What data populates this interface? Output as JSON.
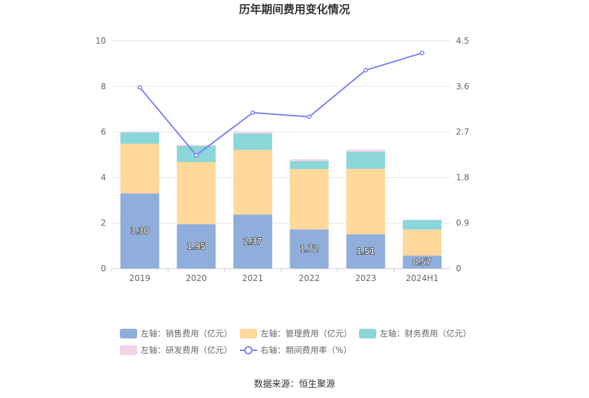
{
  "chart_data": {
    "type": "bar",
    "title": "历年期间费用变化情况",
    "categories": [
      "2019",
      "2020",
      "2021",
      "2022",
      "2023",
      "2024H1"
    ],
    "series": [
      {
        "name": "左轴：销售费用（亿元）",
        "axis": "left",
        "color": "#8faedc",
        "values": [
          3.3,
          1.95,
          2.37,
          1.72,
          1.51,
          0.57
        ],
        "labels": [
          "3.30",
          "1.95",
          "2.37",
          "1.72",
          "1.51",
          "0.57"
        ]
      },
      {
        "name": "左轴：管理费用（亿元）",
        "axis": "left",
        "color": "#ffd89a",
        "values": [
          2.18,
          2.73,
          2.84,
          2.65,
          2.87,
          1.14
        ]
      },
      {
        "name": "左轴：财务费用（亿元）",
        "axis": "left",
        "color": "#8ad6d8",
        "values": [
          0.5,
          0.7,
          0.72,
          0.35,
          0.75,
          0.42
        ]
      },
      {
        "name": "左轴：研发费用（亿元）",
        "axis": "left",
        "color": "#f2d2e8",
        "values": [
          0.04,
          0.05,
          0.08,
          0.08,
          0.09,
          0.02
        ]
      },
      {
        "name": "右轴：期间费用率（%）",
        "axis": "right",
        "type": "line",
        "color": "#7a7ff0",
        "values": [
          3.58,
          2.24,
          3.08,
          3.0,
          3.92,
          4.26
        ]
      }
    ],
    "left_axis": {
      "ylim": [
        0,
        10
      ],
      "ticks": [
        "0",
        "2",
        "4",
        "6",
        "8",
        "10"
      ]
    },
    "right_axis": {
      "ylim": [
        0,
        4.5
      ],
      "ticks": [
        "0",
        "0.9",
        "1.8",
        "2.7",
        "3.6",
        "4.5"
      ]
    },
    "legend_position": "bottom"
  },
  "source": "数据来源：恒生聚源"
}
